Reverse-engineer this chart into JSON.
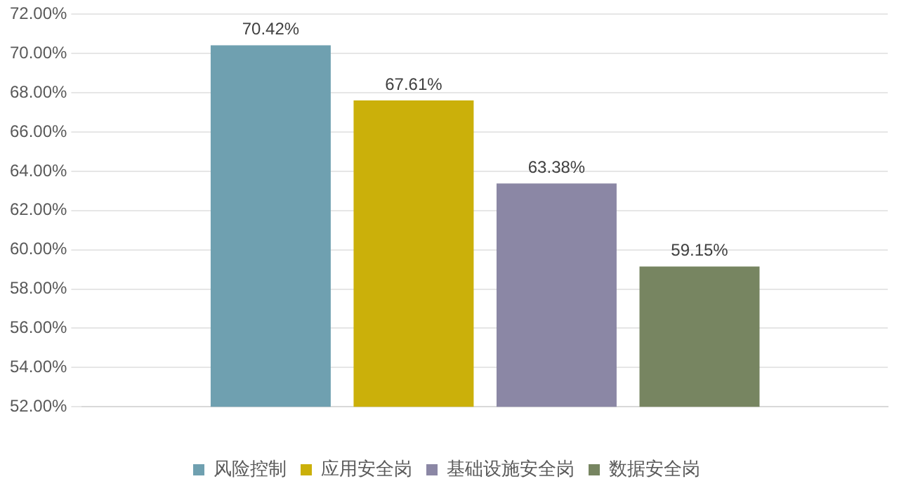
{
  "chart_data": {
    "type": "bar",
    "categories": [
      null
    ],
    "series": [
      {
        "name": "风险控制",
        "color": "#6fa0b0",
        "values": [
          70.42
        ],
        "value_labels": [
          "70.42%"
        ]
      },
      {
        "name": "应用安全岗",
        "color": "#cbb00a",
        "values": [
          67.61
        ],
        "value_labels": [
          "67.61%"
        ]
      },
      {
        "name": "基础设施安全岗",
        "color": "#8b87a5",
        "values": [
          63.38
        ],
        "value_labels": [
          "63.38%"
        ]
      },
      {
        "name": "数据安全岗",
        "color": "#778561",
        "values": [
          59.15
        ],
        "value_labels": [
          "59.15%"
        ]
      }
    ],
    "ylim": [
      52,
      72
    ],
    "yticks": [
      {
        "value": 52,
        "label": "52.00%"
      },
      {
        "value": 54,
        "label": "54.00%"
      },
      {
        "value": 56,
        "label": "56.00%"
      },
      {
        "value": 58,
        "label": "58.00%"
      },
      {
        "value": 60,
        "label": "60.00%"
      },
      {
        "value": 62,
        "label": "62.00%"
      },
      {
        "value": 64,
        "label": "64.00%"
      },
      {
        "value": 66,
        "label": "66.00%"
      },
      {
        "value": 68,
        "label": "68.00%"
      },
      {
        "value": 70,
        "label": "70.00%"
      },
      {
        "value": 72,
        "label": "72.00%"
      }
    ],
    "grid": "y",
    "legend": "bottom"
  }
}
